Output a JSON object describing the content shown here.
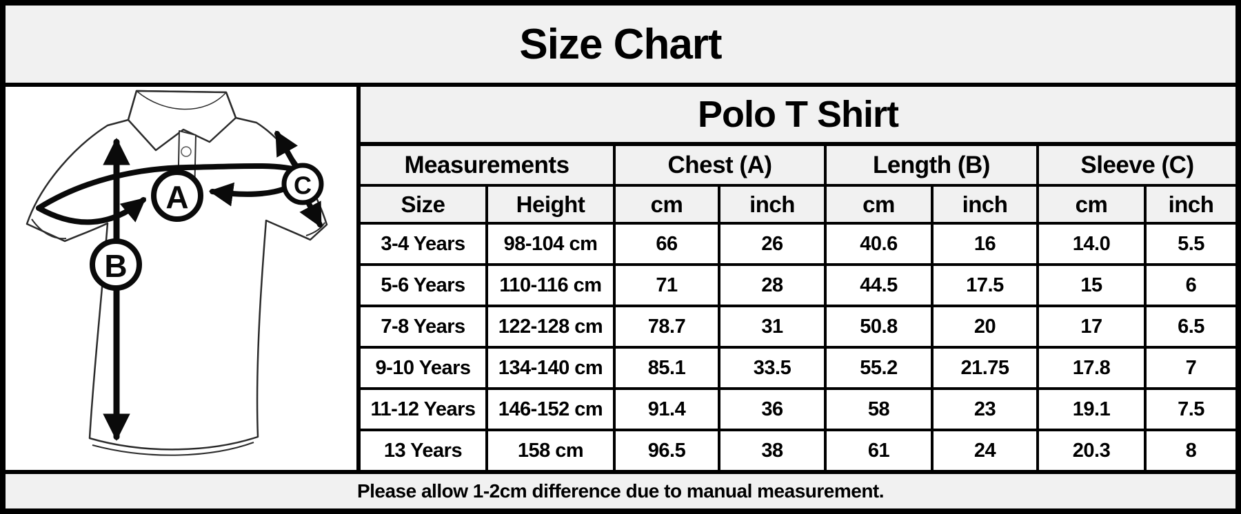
{
  "footer_note": "Please allow 1-2cm difference due to manual measurement.",
  "diagram": {
    "marker_a": "A",
    "marker_b": "B",
    "marker_c": "C"
  },
  "colors": {
    "band_bg": "#f1f1f1",
    "cell_bg": "#ffffff",
    "border": "#000000",
    "text": "#000000"
  },
  "chart_data": {
    "type": "table",
    "title": "Size Chart",
    "subtitle": "Polo T Shirt",
    "group_headers": [
      {
        "label": "Measurements",
        "span": 2
      },
      {
        "label": "Chest (A)",
        "span": 2
      },
      {
        "label": "Length (B)",
        "span": 2
      },
      {
        "label": "Sleeve (C)",
        "span": 2
      }
    ],
    "columns": [
      "Size",
      "Height",
      "cm",
      "inch",
      "cm",
      "inch",
      "cm",
      "inch"
    ],
    "rows": [
      [
        "3-4 Years",
        "98-104 cm",
        "66",
        "26",
        "40.6",
        "16",
        "14.0",
        "5.5"
      ],
      [
        "5-6 Years",
        "110-116 cm",
        "71",
        "28",
        "44.5",
        "17.5",
        "15",
        "6"
      ],
      [
        "7-8 Years",
        "122-128 cm",
        "78.7",
        "31",
        "50.8",
        "20",
        "17",
        "6.5"
      ],
      [
        "9-10 Years",
        "134-140 cm",
        "85.1",
        "33.5",
        "55.2",
        "21.75",
        "17.8",
        "7"
      ],
      [
        "11-12 Years",
        "146-152 cm",
        "91.4",
        "36",
        "58",
        "23",
        "19.1",
        "7.5"
      ],
      [
        "13 Years",
        "158 cm",
        "96.5",
        "38",
        "61",
        "24",
        "20.3",
        "8"
      ]
    ]
  }
}
